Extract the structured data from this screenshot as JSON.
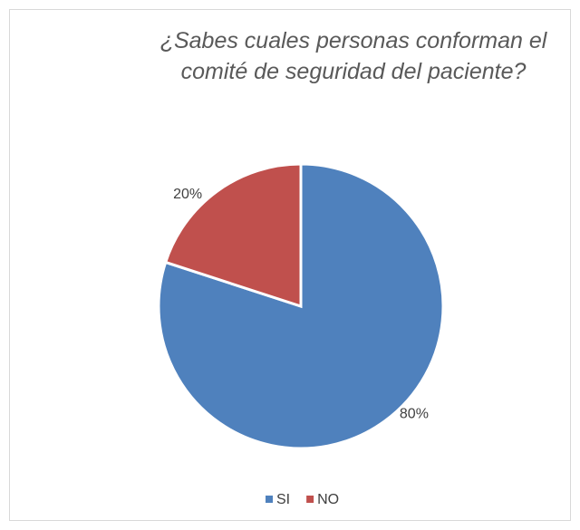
{
  "chart_data": {
    "type": "pie",
    "title": "¿Sabes cuales personas conforman el comité de seguridad del paciente?",
    "categories": [
      "SI",
      "NO"
    ],
    "values": [
      80,
      20
    ],
    "value_labels": [
      "80%",
      "20%"
    ],
    "colors": [
      "#4f81bd",
      "#c0504d"
    ],
    "legend": "bottom"
  }
}
